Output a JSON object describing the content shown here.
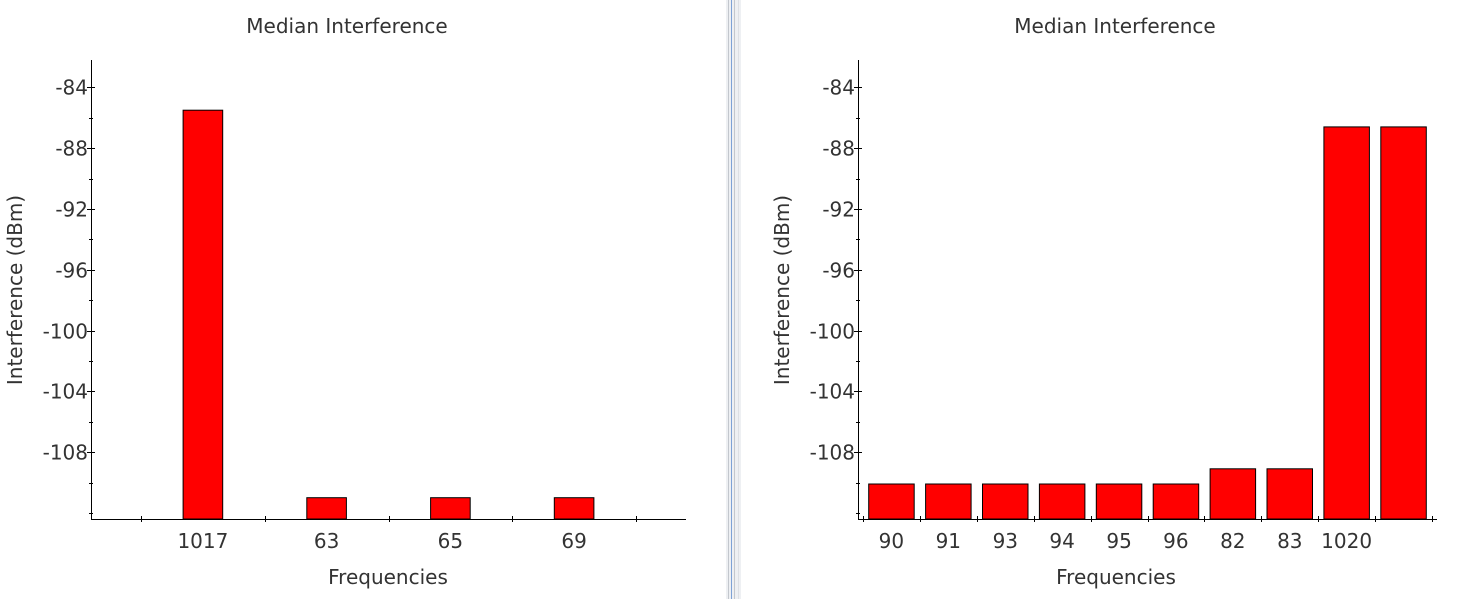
{
  "colors": {
    "bar_fill": "#ff0000",
    "bar_stroke": "#000000",
    "axis": "#000000",
    "text": "#333333"
  },
  "chart_data": [
    {
      "type": "bar",
      "title": "Median Interference",
      "xlabel": "Frequencies",
      "ylabel": "Interference (dBm)",
      "categories": [
        "1017",
        "63",
        "65",
        "69"
      ],
      "series": [
        {
          "values": [
            -85.5,
            -111.0,
            -111.0,
            -111.0
          ]
        }
      ],
      "ylim": [
        -112.4,
        -82.2
      ],
      "yticks": [
        -84,
        -88,
        -92,
        -96,
        -100,
        -104,
        -108
      ],
      "grid": false,
      "legend": "none"
    },
    {
      "type": "bar",
      "title": "Median Interference",
      "xlabel": "Frequencies",
      "ylabel": "Interference (dBm)",
      "categories": [
        "90",
        "91",
        "93",
        "94",
        "95",
        "96",
        "82",
        "83",
        "1020",
        ""
      ],
      "series": [
        {
          "values": [
            -110.1,
            -110.1,
            -110.1,
            -110.1,
            -110.1,
            -110.1,
            -109.1,
            -109.1,
            -86.6,
            -86.6
          ]
        }
      ],
      "ylim": [
        -112.4,
        -82.2
      ],
      "yticks": [
        -84,
        -88,
        -92,
        -96,
        -100,
        -104,
        -108
      ],
      "grid": false,
      "legend": "none"
    }
  ]
}
